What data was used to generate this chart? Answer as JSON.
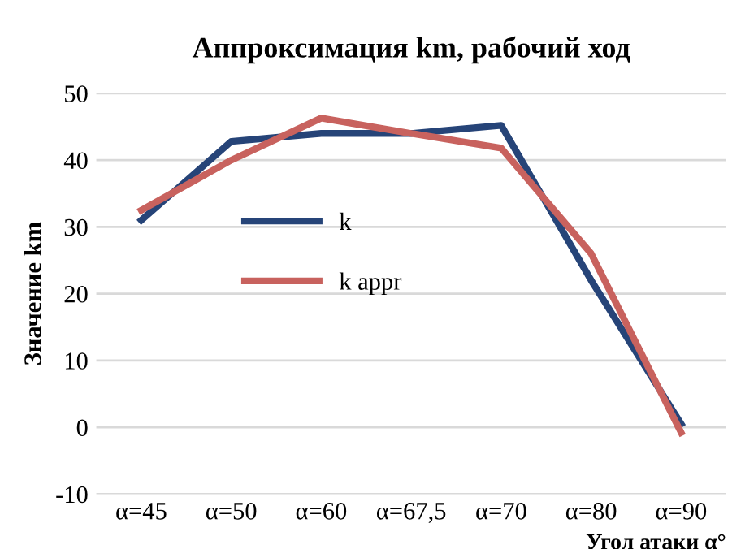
{
  "chart_data": {
    "type": "line",
    "title": "Аппроксимация km, рабочий ход",
    "xlabel": "Угол атаки α°",
    "ylabel": "Значение km",
    "categories": [
      "α=45",
      "α=50",
      "α=60",
      "α=67,5",
      "α=70",
      "α=80",
      "α=90"
    ],
    "series": [
      {
        "name": "k",
        "color": "#264478",
        "values": [
          31,
          42.8,
          44,
          44,
          45.2,
          22,
          0.5
        ]
      },
      {
        "name": "k appr",
        "color": "#c8625e",
        "values": [
          32.5,
          40,
          46.3,
          44,
          41.8,
          26,
          -0.8
        ]
      }
    ],
    "ylim": [
      -10,
      50
    ],
    "yticks": [
      -10,
      0,
      10,
      20,
      30,
      40,
      50
    ],
    "grid": "y",
    "legend": "center",
    "marker": "none",
    "line_style": "solid"
  }
}
